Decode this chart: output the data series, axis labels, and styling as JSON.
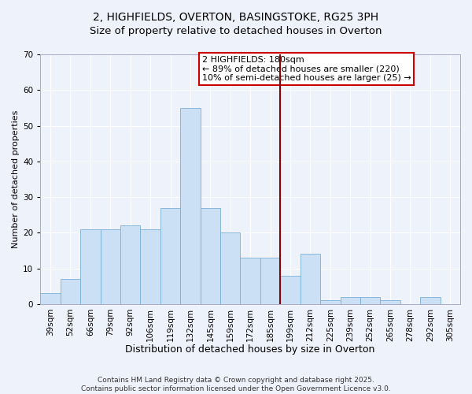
{
  "title": "2, HIGHFIELDS, OVERTON, BASINGSTOKE, RG25 3PH",
  "subtitle": "Size of property relative to detached houses in Overton",
  "xlabel": "Distribution of detached houses by size in Overton",
  "ylabel": "Number of detached properties",
  "bar_values": [
    3,
    7,
    21,
    21,
    22,
    21,
    27,
    55,
    27,
    20,
    13,
    13,
    8,
    14,
    1,
    2,
    2,
    1,
    0,
    2,
    0
  ],
  "bar_labels": [
    "39sqm",
    "52sqm",
    "66sqm",
    "79sqm",
    "92sqm",
    "106sqm",
    "119sqm",
    "132sqm",
    "145sqm",
    "159sqm",
    "172sqm",
    "185sqm",
    "199sqm",
    "212sqm",
    "225sqm",
    "239sqm",
    "252sqm",
    "265sqm",
    "278sqm",
    "292sqm",
    "305sqm"
  ],
  "bar_color": "#cce0f5",
  "bar_edge_color": "#7ab0d8",
  "ylim": [
    0,
    70
  ],
  "yticks": [
    0,
    10,
    20,
    30,
    40,
    50,
    60,
    70
  ],
  "vline_x": 11.5,
  "vline_color": "#8b0000",
  "annotation_title": "2 HIGHFIELDS: 180sqm",
  "annotation_line1": "← 89% of detached houses are smaller (220)",
  "annotation_line2": "10% of semi-detached houses are larger (25) →",
  "annotation_box_color": "#ffffff",
  "annotation_box_edge_color": "#cc0000",
  "background_color": "#eef2fa",
  "grid_color": "#ffffff",
  "footer_line1": "Contains HM Land Registry data © Crown copyright and database right 2025.",
  "footer_line2": "Contains public sector information licensed under the Open Government Licence v3.0.",
  "title_fontsize": 10,
  "xlabel_fontsize": 9,
  "ylabel_fontsize": 8,
  "tick_fontsize": 7.5,
  "footer_fontsize": 6.5,
  "annot_fontsize": 8
}
